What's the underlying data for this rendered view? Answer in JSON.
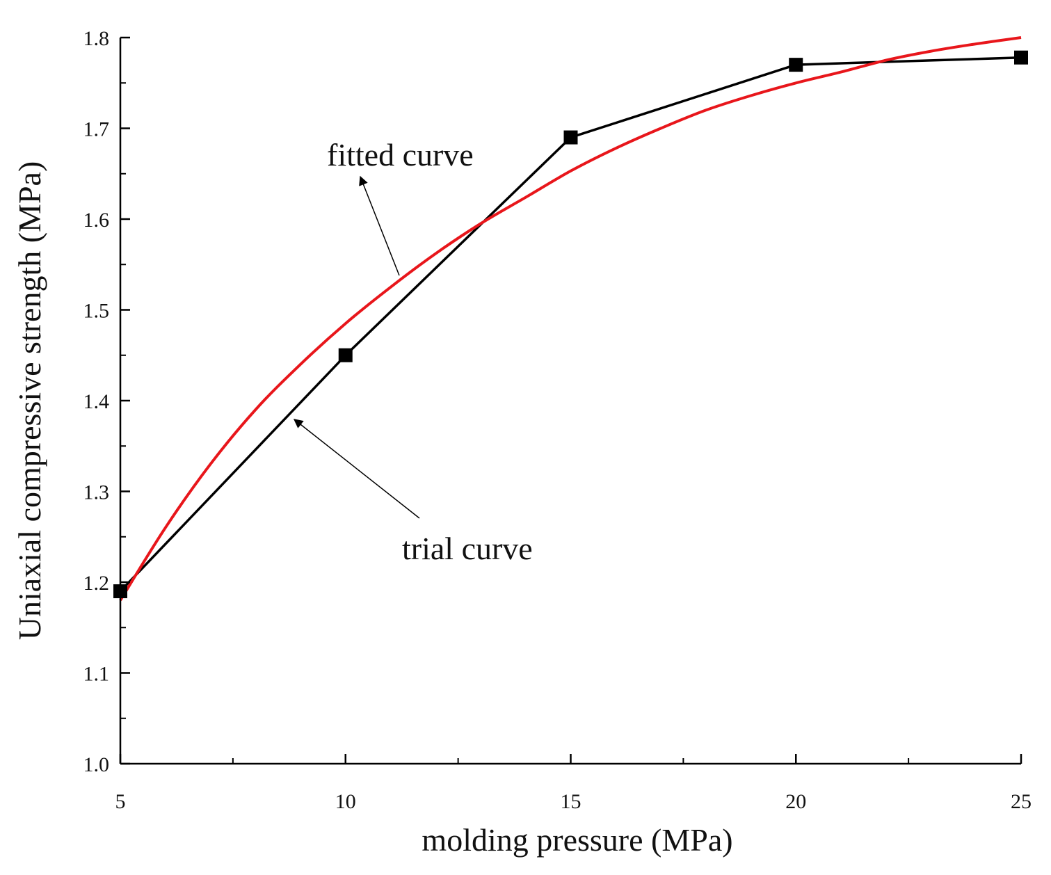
{
  "chart_data": {
    "type": "line",
    "title": "",
    "xlabel": "molding pressure (MPa)",
    "ylabel": "Uniaxial compressive strength (MPa)",
    "xlim": [
      5,
      25
    ],
    "ylim": [
      1.0,
      1.8
    ],
    "x_ticks": [
      5,
      10,
      15,
      20,
      25
    ],
    "x_tick_labels": [
      "5",
      "10",
      "15",
      "20",
      "25"
    ],
    "y_ticks": [
      1.0,
      1.1,
      1.2,
      1.3,
      1.4,
      1.5,
      1.6,
      1.7,
      1.8
    ],
    "y_tick_labels": [
      "1.0",
      "1.1",
      "1.2",
      "1.3",
      "1.4",
      "1.5",
      "1.6",
      "1.7",
      "1.8"
    ],
    "grid": false,
    "series": [
      {
        "name": "trial curve",
        "color": "#000000",
        "marker": "square",
        "x": [
          5,
          10,
          15,
          20,
          25
        ],
        "y": [
          1.19,
          1.45,
          1.69,
          1.77,
          1.778
        ]
      },
      {
        "name": "fitted curve",
        "color": "#e8161b",
        "marker": "none",
        "x": [
          5,
          6,
          7,
          8,
          9,
          10,
          11,
          12,
          13,
          14,
          15,
          16,
          17,
          18,
          19,
          20,
          21,
          22,
          23,
          24,
          25
        ],
        "y": [
          1.18,
          1.26,
          1.33,
          1.39,
          1.44,
          1.485,
          1.525,
          1.562,
          1.595,
          1.624,
          1.653,
          1.678,
          1.7,
          1.72,
          1.736,
          1.75,
          1.762,
          1.775,
          1.785,
          1.793,
          1.8
        ]
      }
    ],
    "annotations": [
      {
        "text": "fitted curve",
        "points_to": "fitted curve",
        "target": [
          11.2,
          1.53
        ]
      },
      {
        "text": "trial curve",
        "points_to": "trial curve",
        "target": [
          8.9,
          1.385
        ]
      }
    ]
  }
}
